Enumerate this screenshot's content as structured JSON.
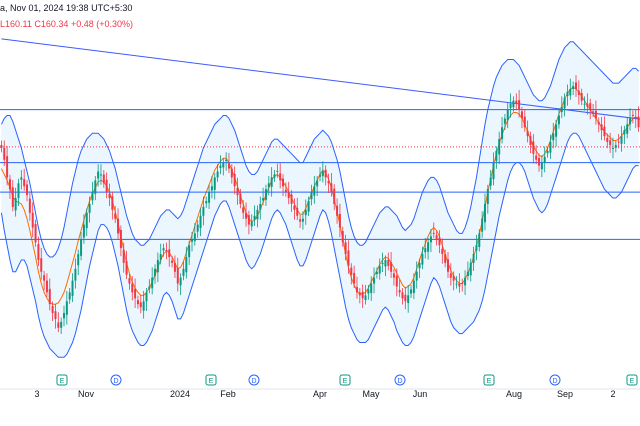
{
  "header": {
    "line1": "a, Nov 01, 2024 19:38 UTC+5:30",
    "low": "L160.11",
    "close": "C160.34",
    "change": "+0.48 (+0.30%)"
  },
  "chart_data": {
    "type": "candlestick",
    "x_labels": [
      "3",
      "Nov",
      "2024",
      "Feb",
      "Apr",
      "May",
      "Jun",
      "Aug",
      "Sep",
      "2"
    ],
    "event_markers": [
      {
        "label": "E",
        "type": "earnings"
      },
      {
        "label": "D",
        "type": "dividend"
      },
      {
        "label": "E",
        "type": "earnings"
      },
      {
        "label": "D",
        "type": "dividend"
      },
      {
        "label": "E",
        "type": "earnings"
      },
      {
        "label": "D",
        "type": "dividend"
      },
      {
        "label": "E",
        "type": "earnings"
      },
      {
        "label": "D",
        "type": "dividend"
      },
      {
        "label": "E",
        "type": "earnings"
      }
    ],
    "ohlc_close_series": [
      160,
      156,
      150,
      146,
      140,
      143,
      148,
      150,
      147,
      144,
      138,
      133,
      128,
      122,
      118,
      115,
      111,
      107,
      104,
      102,
      99,
      101,
      104,
      108,
      111,
      115,
      119,
      124,
      129,
      134,
      138,
      141,
      145,
      149,
      152,
      151,
      148,
      145,
      143,
      139,
      136,
      131,
      126,
      121,
      117,
      114,
      111,
      109,
      107,
      106,
      108,
      111,
      113,
      116,
      119,
      122,
      124,
      126,
      125,
      123,
      121,
      118,
      114,
      116,
      119,
      123,
      127,
      129,
      131,
      134,
      137,
      140,
      142,
      145,
      147,
      150,
      152,
      154,
      155,
      156,
      153,
      150,
      147,
      144,
      141,
      138,
      136,
      134,
      135,
      137,
      139,
      141,
      143,
      146,
      148,
      150,
      151,
      152,
      149,
      147,
      145,
      143,
      141,
      139,
      137,
      135,
      136,
      139,
      142,
      145,
      147,
      149,
      151,
      152,
      150,
      148,
      145,
      141,
      137,
      133,
      128,
      124,
      120,
      117,
      114,
      111,
      110,
      109,
      110,
      112,
      114,
      116,
      118,
      120,
      121,
      122,
      120,
      118,
      116,
      113,
      111,
      109,
      108,
      110,
      112,
      115,
      118,
      121,
      124,
      126,
      128,
      130,
      131,
      129,
      127,
      124,
      121,
      118,
      116,
      115,
      114,
      113,
      114,
      116,
      118,
      121,
      124,
      127,
      131,
      136,
      141,
      146,
      150,
      155,
      159,
      163,
      167,
      170,
      173,
      175,
      176,
      175,
      173,
      170,
      167,
      164,
      161,
      158,
      156,
      154,
      155,
      157,
      159,
      162,
      165,
      168,
      171,
      174,
      177,
      179,
      180,
      181,
      180,
      178,
      176,
      175,
      174,
      173,
      172,
      170,
      168,
      166,
      164,
      162,
      161,
      160,
      161,
      162,
      164,
      166,
      168,
      170,
      171,
      170,
      167
    ],
    "bollinger_upper": [
      168,
      170,
      171,
      171,
      169,
      166,
      163,
      160,
      156,
      152,
      148,
      143,
      138,
      133,
      129,
      126,
      124,
      123,
      123,
      124,
      126,
      129,
      133,
      138,
      143,
      148,
      152,
      156,
      159,
      161,
      163,
      164,
      165,
      165,
      165,
      164,
      163,
      161,
      159,
      156,
      153,
      149,
      145,
      141,
      137,
      134,
      131,
      129,
      128,
      127,
      127,
      128,
      129,
      131,
      133,
      135,
      137,
      138,
      139,
      139,
      138,
      137,
      136,
      137,
      139,
      142,
      145,
      148,
      151,
      154,
      157,
      160,
      162,
      164,
      166,
      168,
      169,
      170,
      171,
      171,
      170,
      168,
      166,
      163,
      160,
      157,
      154,
      152,
      151,
      151,
      152,
      154,
      156,
      158,
      160,
      162,
      163,
      163,
      162,
      161,
      160,
      159,
      158,
      157,
      156,
      155,
      155,
      157,
      159,
      161,
      163,
      164,
      165,
      166,
      165,
      164,
      162,
      159,
      156,
      152,
      147,
      142,
      137,
      133,
      130,
      128,
      127,
      127,
      128,
      130,
      132,
      134,
      136,
      138,
      139,
      140,
      140,
      139,
      138,
      137,
      135,
      133,
      132,
      133,
      134,
      136,
      139,
      142,
      145,
      147,
      149,
      150,
      150,
      149,
      147,
      144,
      141,
      138,
      136,
      134,
      132,
      131,
      131,
      133,
      136,
      140,
      145,
      150,
      156,
      162,
      168,
      173,
      177,
      181,
      184,
      186,
      188,
      189,
      190,
      190,
      190,
      189,
      188,
      186,
      184,
      182,
      180,
      178,
      177,
      176,
      176,
      177,
      179,
      181,
      184,
      187,
      190,
      192,
      194,
      195,
      196,
      196,
      195,
      194,
      193,
      192,
      191,
      190,
      189,
      188,
      187,
      186,
      185,
      184,
      183,
      182,
      182,
      182,
      183,
      184,
      185,
      186,
      187,
      187,
      186
    ],
    "bollinger_lower": [
      138,
      132,
      127,
      122,
      118,
      118,
      120,
      122,
      122,
      120,
      116,
      112,
      108,
      103,
      99,
      96,
      94,
      92,
      91,
      90,
      89,
      89,
      89,
      90,
      92,
      94,
      97,
      101,
      105,
      110,
      115,
      120,
      124,
      128,
      132,
      134,
      134,
      133,
      131,
      128,
      124,
      120,
      115,
      110,
      105,
      101,
      98,
      96,
      94,
      93,
      93,
      94,
      96,
      98,
      101,
      104,
      107,
      110,
      111,
      110,
      108,
      105,
      102,
      102,
      104,
      107,
      110,
      113,
      116,
      119,
      122,
      125,
      128,
      131,
      134,
      137,
      139,
      141,
      142,
      142,
      140,
      137,
      134,
      131,
      128,
      125,
      122,
      120,
      119,
      120,
      122,
      124,
      127,
      130,
      133,
      136,
      138,
      139,
      138,
      136,
      134,
      131,
      128,
      125,
      122,
      120,
      120,
      122,
      125,
      128,
      131,
      134,
      137,
      139,
      138,
      135,
      131,
      126,
      121,
      116,
      111,
      106,
      102,
      99,
      97,
      95,
      94,
      94,
      94,
      95,
      97,
      99,
      101,
      103,
      105,
      106,
      105,
      103,
      101,
      98,
      96,
      94,
      93,
      93,
      94,
      96,
      99,
      102,
      105,
      108,
      111,
      114,
      116,
      115,
      113,
      110,
      107,
      104,
      101,
      99,
      98,
      97,
      97,
      98,
      99,
      100,
      101,
      103,
      105,
      108,
      112,
      117,
      122,
      127,
      132,
      137,
      141,
      145,
      149,
      152,
      154,
      155,
      155,
      154,
      152,
      149,
      146,
      143,
      141,
      139,
      138,
      139,
      141,
      144,
      147,
      150,
      153,
      156,
      159,
      162,
      164,
      165,
      165,
      164,
      162,
      160,
      158,
      156,
      154,
      152,
      150,
      148,
      146,
      145,
      144,
      143,
      143,
      144,
      145,
      147,
      149,
      151,
      153,
      154,
      154
    ],
    "y_range": [
      84,
      200
    ],
    "horizontal_levels": [
      173,
      155,
      145,
      129
    ],
    "dotted_level": 160.34,
    "trendline": {
      "start_index": 0,
      "start_value": 197,
      "end_index": 224,
      "end_value": 169
    }
  }
}
